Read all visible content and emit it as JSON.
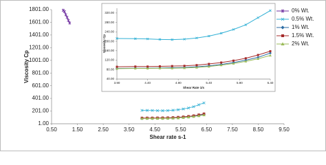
{
  "chart_data": [
    {
      "type": "line",
      "ylabel": "Viscosity Cp",
      "xlabel": "Shear rate s-1",
      "xlim": [
        0.5,
        9.5
      ],
      "xticks": [
        {
          "value": 0.5,
          "label": "0.50"
        },
        {
          "value": 1.5,
          "label": "1.50"
        },
        {
          "value": 2.5,
          "label": "2.50"
        },
        {
          "value": 3.5,
          "label": "3.50"
        },
        {
          "value": 4.5,
          "label": "4.50"
        },
        {
          "value": 5.5,
          "label": "5.50"
        },
        {
          "value": 6.5,
          "label": "6.50"
        },
        {
          "value": 7.5,
          "label": "7.50"
        },
        {
          "value": 8.5,
          "label": "8.50"
        },
        {
          "value": 9.5,
          "label": "9.50"
        }
      ],
      "ylim": [
        1,
        1801
      ],
      "yticks": [
        {
          "value": 1,
          "label": "1.00"
        },
        {
          "value": 201,
          "label": "201.00"
        },
        {
          "value": 401,
          "label": "401.00"
        },
        {
          "value": 601,
          "label": "601.00"
        },
        {
          "value": 801,
          "label": "801.00"
        },
        {
          "value": 1001,
          "label": "1001.00"
        },
        {
          "value": 1201,
          "label": "1201.00"
        },
        {
          "value": 1401,
          "label": "1401.00"
        },
        {
          "value": 1601,
          "label": "1601.00"
        },
        {
          "value": 1801,
          "label": "1801.00"
        }
      ],
      "legend": "right",
      "series": [
        {
          "name": "0% Wt.",
          "color": "#7030a0",
          "marker": "star",
          "x": [
            0.95,
            1.0,
            1.05,
            1.1,
            1.15,
            1.2
          ],
          "values": [
            1790,
            1770,
            1720,
            1680,
            1630,
            1590
          ]
        },
        {
          "name": "0.5% Wt.",
          "color": "#31b0d5",
          "marker": "x",
          "x": [
            4.0,
            4.2,
            4.4,
            4.6,
            4.8,
            5.0,
            5.2,
            5.4,
            5.6,
            5.8,
            6.0,
            6.2,
            6.4
          ],
          "values": [
            212,
            211,
            210,
            208,
            207,
            209,
            214,
            222,
            234,
            250,
            270,
            300,
            330
          ]
        },
        {
          "name": "1% Wt.",
          "color": "#2e6da4",
          "marker": "diamond",
          "x": [
            4.0,
            4.2,
            4.4,
            4.6,
            4.8,
            5.0,
            5.2,
            5.4,
            5.6,
            5.8,
            6.0,
            6.2,
            6.4
          ],
          "values": [
            85,
            86,
            86,
            87,
            88,
            89,
            92,
            96,
            102,
            110,
            120,
            132,
            150
          ]
        },
        {
          "name": "1.5% Wt.",
          "color": "#a52a2a",
          "marker": "square",
          "x": [
            4.0,
            4.2,
            4.4,
            4.6,
            4.8,
            5.0,
            5.2,
            5.4,
            5.6,
            5.8,
            6.0,
            6.2,
            6.4
          ],
          "values": [
            92,
            93,
            93,
            94,
            95,
            96,
            99,
            104,
            110,
            118,
            128,
            142,
            158
          ]
        },
        {
          "name": "2% Wt.",
          "color": "#9bbb59",
          "marker": "triangle",
          "x": [
            4.0,
            4.2,
            4.4,
            4.6,
            4.8,
            5.0,
            5.2,
            5.4,
            5.6,
            5.8,
            6.0,
            6.2,
            6.4
          ],
          "values": [
            84,
            85,
            85,
            86,
            86,
            87,
            89,
            93,
            99,
            106,
            115,
            126,
            140
          ]
        }
      ]
    },
    {
      "type": "line",
      "ylabel": "Viscosity Cp",
      "xlabel": "Shear Rate 1/s",
      "xlim": [
        3.9,
        6.4
      ],
      "xticks": [
        {
          "value": 3.9,
          "label": "3.90"
        },
        {
          "value": 4.4,
          "label": "4.40"
        },
        {
          "value": 4.9,
          "label": "4.90"
        },
        {
          "value": 5.4,
          "label": "5.40"
        },
        {
          "value": 5.9,
          "label": "5.90"
        },
        {
          "value": 6.4,
          "label": "6.40"
        }
      ],
      "ylim": [
        40,
        340
      ],
      "yticks": [
        {
          "value": 40,
          "label": "40.00"
        },
        {
          "value": 80,
          "label": "80.00"
        },
        {
          "value": 120,
          "label": "120.00"
        },
        {
          "value": 160,
          "label": "160.00"
        },
        {
          "value": 200,
          "label": "200.00"
        },
        {
          "value": 240,
          "label": "240.00"
        },
        {
          "value": 280,
          "label": "280.00"
        },
        {
          "value": 320,
          "label": "320.00"
        }
      ],
      "series": [
        {
          "color": "#31b0d5",
          "marker": "x",
          "x": [
            3.9,
            4.2,
            4.4,
            4.6,
            4.8,
            5.0,
            5.2,
            5.4,
            5.6,
            5.8,
            6.0,
            6.2,
            6.4
          ],
          "values": [
            212,
            211,
            210,
            208,
            207,
            209,
            214,
            222,
            234,
            250,
            270,
            300,
            330
          ]
        },
        {
          "color": "#2e6da4",
          "marker": "diamond",
          "x": [
            3.9,
            4.2,
            4.4,
            4.6,
            4.8,
            5.0,
            5.2,
            5.4,
            5.6,
            5.8,
            6.0,
            6.2,
            6.4
          ],
          "values": [
            85,
            86,
            86,
            87,
            88,
            89,
            92,
            96,
            102,
            110,
            120,
            132,
            150
          ]
        },
        {
          "color": "#a52a2a",
          "marker": "square",
          "x": [
            3.9,
            4.2,
            4.4,
            4.6,
            4.8,
            5.0,
            5.2,
            5.4,
            5.6,
            5.8,
            6.0,
            6.2,
            6.4
          ],
          "values": [
            92,
            93,
            93,
            94,
            95,
            96,
            99,
            104,
            110,
            118,
            128,
            142,
            158
          ]
        },
        {
          "color": "#9bbb59",
          "marker": "triangle",
          "x": [
            3.9,
            4.2,
            4.4,
            4.6,
            4.8,
            5.0,
            5.2,
            5.4,
            5.6,
            5.8,
            6.0,
            6.2,
            6.4
          ],
          "values": [
            84,
            85,
            85,
            86,
            86,
            87,
            89,
            93,
            99,
            106,
            115,
            126,
            140
          ]
        }
      ]
    }
  ]
}
